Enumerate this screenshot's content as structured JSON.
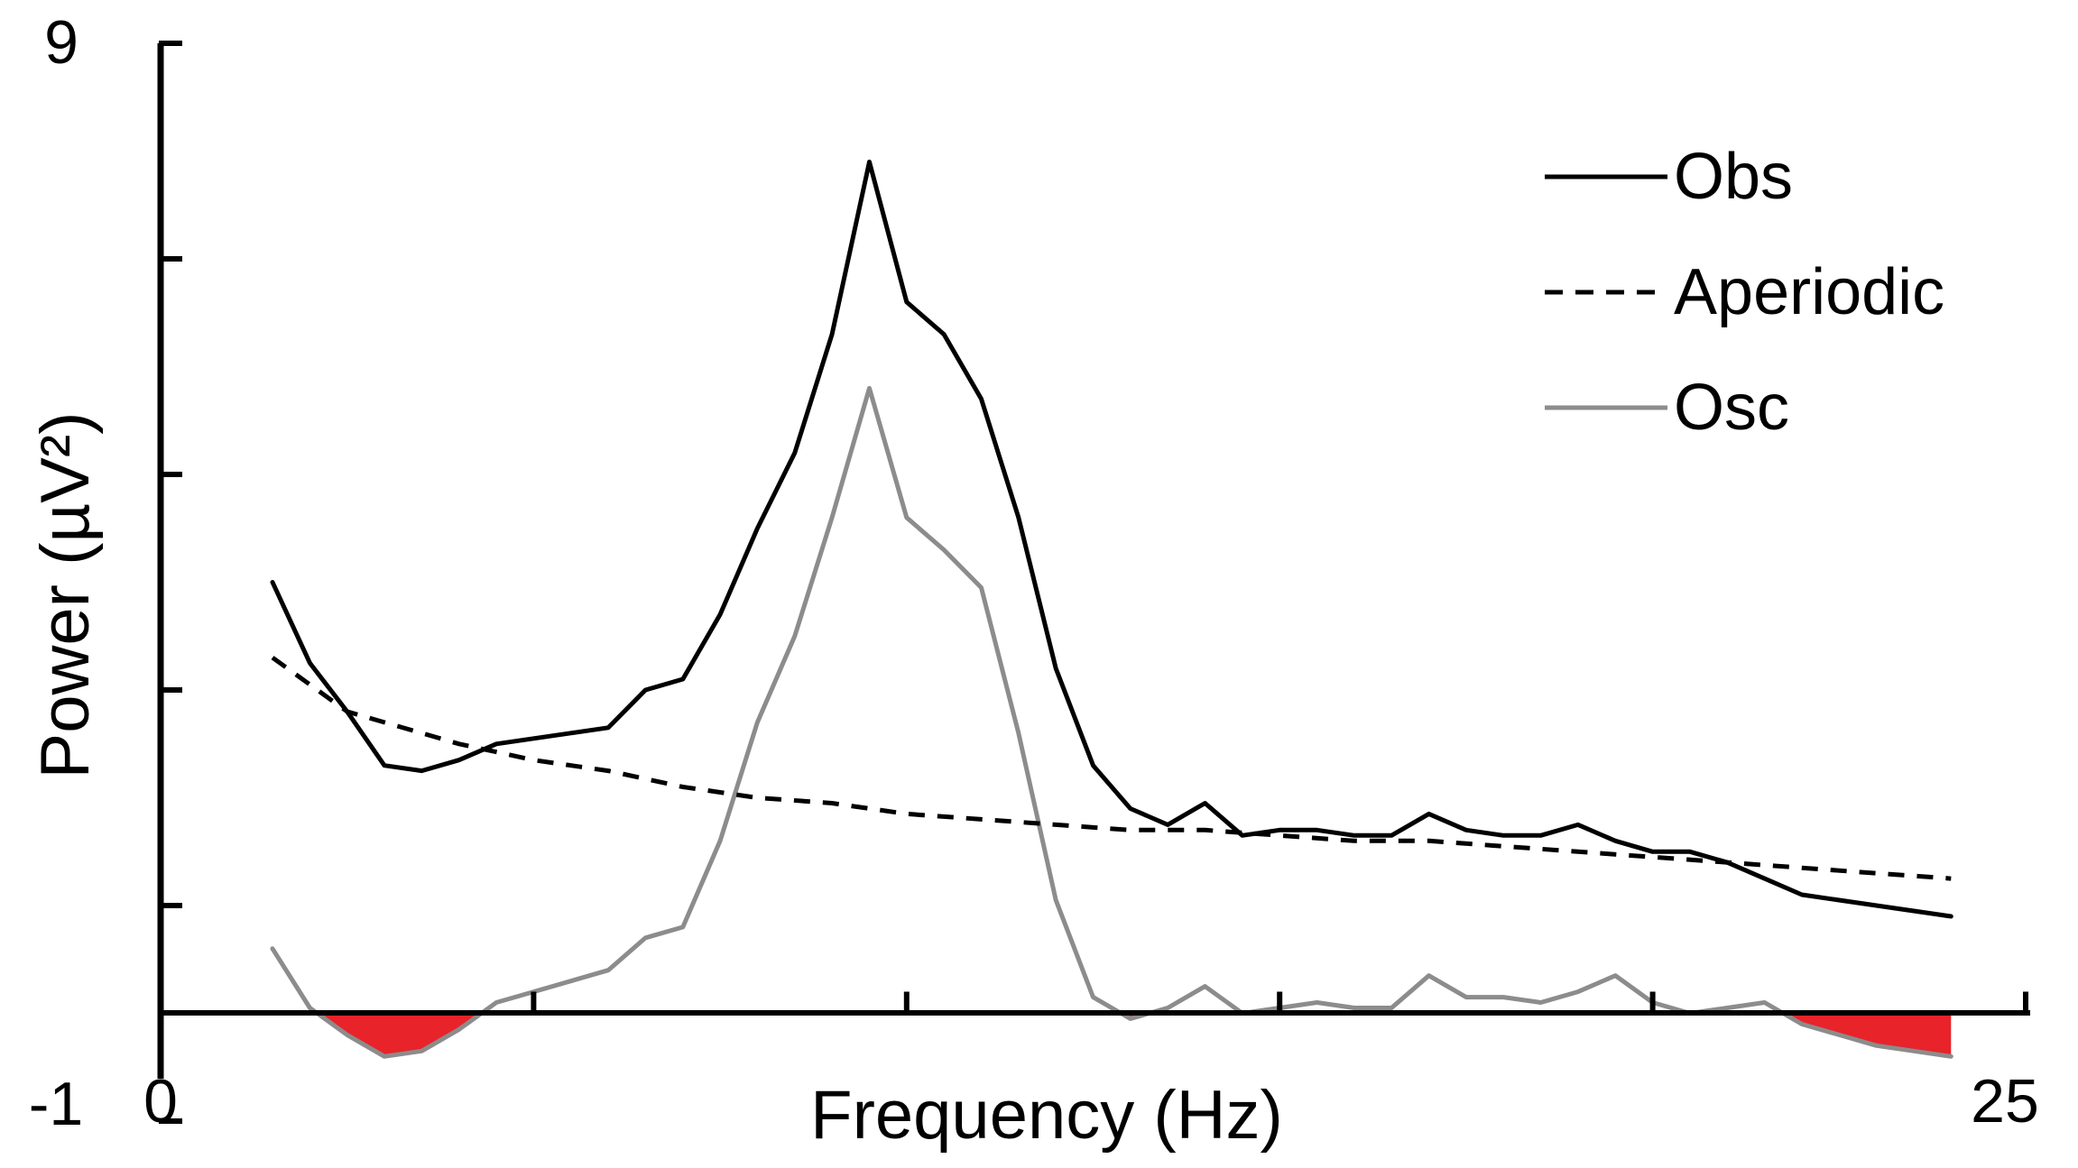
{
  "chart_data": {
    "type": "line",
    "xlabel": "Frequency (Hz)",
    "ylabel": "Power (µV²)",
    "xlim": [
      0,
      25
    ],
    "ylim": [
      -1,
      9
    ],
    "x_tick_labels": [
      "0",
      "25"
    ],
    "y_tick_labels": [
      "9",
      "-1"
    ],
    "x_ticks": [
      0,
      5,
      10,
      15,
      20,
      25
    ],
    "y_ticks": [
      9,
      7,
      5,
      3,
      1,
      -1
    ],
    "grid": false,
    "legend": "top-right",
    "colors": {
      "obs": "#000000",
      "aperiodic": "#000000",
      "osc": "#8c8c8c",
      "negative_fill": "#e8232a"
    },
    "series": [
      {
        "name": "Obs",
        "style": "solid",
        "x": [
          1.5,
          2.0,
          2.5,
          3.0,
          3.5,
          4.0,
          4.5,
          5.0,
          5.5,
          6.0,
          6.5,
          7.0,
          7.5,
          8.0,
          8.5,
          9.0,
          9.5,
          10.0,
          10.5,
          11.0,
          11.5,
          12.0,
          12.5,
          13.0,
          13.5,
          14.0,
          14.5,
          15.0,
          15.5,
          16.0,
          16.5,
          17.0,
          17.5,
          18.0,
          18.5,
          19.0,
          19.5,
          20.0,
          20.5,
          21.0,
          21.5,
          22.0,
          22.5,
          23.0,
          23.5,
          24.0
        ],
        "values": [
          4.0,
          3.25,
          2.8,
          2.3,
          2.25,
          2.35,
          2.5,
          2.55,
          2.6,
          2.65,
          3.0,
          3.1,
          3.7,
          4.5,
          5.2,
          6.3,
          7.9,
          6.6,
          6.3,
          5.7,
          4.6,
          3.2,
          2.3,
          1.9,
          1.75,
          1.95,
          1.65,
          1.7,
          1.7,
          1.65,
          1.65,
          1.85,
          1.7,
          1.65,
          1.65,
          1.75,
          1.6,
          1.5,
          1.5,
          1.4,
          1.25,
          1.1,
          1.05,
          1.0,
          0.95,
          0.9
        ]
      },
      {
        "name": "Aperiodic",
        "style": "dashed",
        "x": [
          1.5,
          2.0,
          2.5,
          3.0,
          3.5,
          4.0,
          5.0,
          6.0,
          7.0,
          8.0,
          9.0,
          10.0,
          11.0,
          12.0,
          13.0,
          14.0,
          15.0,
          16.0,
          17.0,
          18.0,
          19.0,
          20.0,
          21.0,
          22.0,
          23.0,
          24.0
        ],
        "values": [
          3.3,
          3.05,
          2.8,
          2.7,
          2.6,
          2.5,
          2.35,
          2.25,
          2.1,
          2.0,
          1.95,
          1.85,
          1.8,
          1.75,
          1.7,
          1.7,
          1.65,
          1.6,
          1.6,
          1.55,
          1.5,
          1.45,
          1.4,
          1.35,
          1.3,
          1.25
        ]
      },
      {
        "name": "Osc",
        "style": "solid",
        "x": [
          1.5,
          2.0,
          2.5,
          3.0,
          3.5,
          4.0,
          4.5,
          5.0,
          5.5,
          6.0,
          6.5,
          7.0,
          7.5,
          8.0,
          8.5,
          9.0,
          9.5,
          10.0,
          10.5,
          11.0,
          11.5,
          12.0,
          12.5,
          13.0,
          13.5,
          14.0,
          14.5,
          15.0,
          15.5,
          16.0,
          16.5,
          17.0,
          17.5,
          18.0,
          18.5,
          19.0,
          19.5,
          20.0,
          20.5,
          21.0,
          21.5,
          22.0,
          22.5,
          23.0,
          23.5,
          24.0
        ],
        "values": [
          0.6,
          0.05,
          -0.2,
          -0.4,
          -0.35,
          -0.15,
          0.1,
          0.2,
          0.3,
          0.4,
          0.7,
          0.8,
          1.6,
          2.7,
          3.5,
          4.6,
          5.8,
          4.6,
          4.3,
          3.95,
          2.6,
          1.05,
          0.15,
          -0.05,
          0.05,
          0.25,
          0.0,
          0.05,
          0.1,
          0.05,
          0.05,
          0.35,
          0.15,
          0.15,
          0.1,
          0.2,
          0.35,
          0.1,
          0.0,
          0.05,
          0.1,
          -0.1,
          -0.2,
          -0.3,
          -0.35,
          -0.4
        ]
      }
    ]
  }
}
